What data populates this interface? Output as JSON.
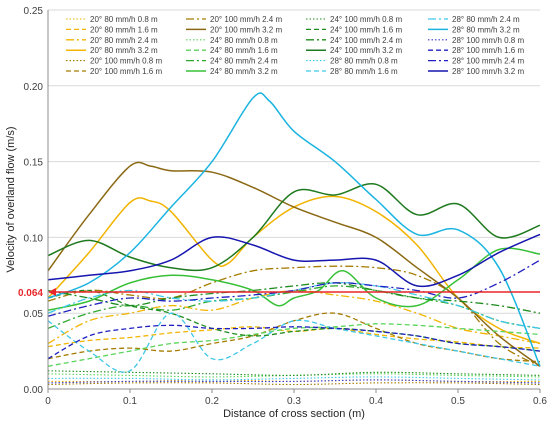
{
  "chart_data": {
    "type": "line",
    "xlabel": "Distance of cross section (m)",
    "ylabel": "Velocity of overland flow (m/s)",
    "xlim": [
      0,
      0.6
    ],
    "ylim": [
      0,
      0.25
    ],
    "x_ticks": [
      "0",
      "0.1",
      "0.2",
      "0.3",
      "0.4",
      "0.5",
      "0.6"
    ],
    "y_ticks": [
      "0.00",
      "0.05",
      "0.10",
      "0.15",
      "0.20",
      "0.25"
    ],
    "grid": "horizontal",
    "legend_position": "top",
    "threshold": {
      "value": 0.064,
      "label": "0.064",
      "color": "#e8272a"
    },
    "series": [
      {
        "name": "20° 80 mm/h 0.8 m",
        "color": "#f2b400",
        "dash": "dot",
        "x": [
          0,
          0.1,
          0.2,
          0.3,
          0.4,
          0.5,
          0.6
        ],
        "y": [
          0.005,
          0.005,
          0.006,
          0.005,
          0.006,
          0.005,
          0.005
        ]
      },
      {
        "name": "20° 80 mm/h 1.6 m",
        "color": "#f2b400",
        "dash": "dash",
        "x": [
          0,
          0.05,
          0.1,
          0.15,
          0.2,
          0.25,
          0.3,
          0.35,
          0.4,
          0.45,
          0.5,
          0.55,
          0.6
        ],
        "y": [
          0.028,
          0.032,
          0.034,
          0.037,
          0.039,
          0.041,
          0.038,
          0.04,
          0.036,
          0.033,
          0.031,
          0.028,
          0.027
        ]
      },
      {
        "name": "20° 80 mm/h 2.4 m",
        "color": "#f2b400",
        "dash": "dashdot",
        "x": [
          0,
          0.05,
          0.1,
          0.15,
          0.2,
          0.25,
          0.3,
          0.35,
          0.4,
          0.45,
          0.5,
          0.55,
          0.6
        ],
        "y": [
          0.03,
          0.045,
          0.05,
          0.055,
          0.052,
          0.06,
          0.065,
          0.062,
          0.058,
          0.05,
          0.04,
          0.035,
          0.03
        ]
      },
      {
        "name": "20° 80 mm/h 3.2 m",
        "color": "#f2b400",
        "dash": "solid",
        "x": [
          0,
          0.05,
          0.1,
          0.125,
          0.15,
          0.2,
          0.22,
          0.25,
          0.3,
          0.35,
          0.4,
          0.45,
          0.5,
          0.55,
          0.6
        ],
        "y": [
          0.06,
          0.09,
          0.123,
          0.124,
          0.117,
          0.085,
          0.083,
          0.1,
          0.12,
          0.127,
          0.117,
          0.095,
          0.06,
          0.04,
          0.03
        ]
      },
      {
        "name": "20° 100 mm/h 0.8 m",
        "color": "#a57c00",
        "dash": "dot",
        "x": [
          0,
          0.1,
          0.2,
          0.3,
          0.4,
          0.5,
          0.6
        ],
        "y": [
          0.003,
          0.004,
          0.004,
          0.003,
          0.004,
          0.004,
          0.003
        ]
      },
      {
        "name": "20° 100 mm/h 1.6 m",
        "color": "#a57c00",
        "dash": "dash",
        "x": [
          0,
          0.05,
          0.1,
          0.15,
          0.2,
          0.25,
          0.3,
          0.35,
          0.4,
          0.45,
          0.5,
          0.55,
          0.6
        ],
        "y": [
          0.02,
          0.025,
          0.027,
          0.025,
          0.03,
          0.035,
          0.045,
          0.05,
          0.04,
          0.03,
          0.025,
          0.02,
          0.018
        ]
      },
      {
        "name": "20° 100 mm/h 2.4 m",
        "color": "#a57c00",
        "dash": "dashdot",
        "x": [
          0,
          0.05,
          0.1,
          0.15,
          0.2,
          0.25,
          0.3,
          0.35,
          0.4,
          0.45,
          0.5,
          0.55,
          0.6
        ],
        "y": [
          0.058,
          0.065,
          0.062,
          0.06,
          0.07,
          0.078,
          0.08,
          0.081,
          0.08,
          0.075,
          0.06,
          0.03,
          0.015
        ]
      },
      {
        "name": "20° 100 mm/h 3.2 m",
        "color": "#8b6914",
        "dash": "solid",
        "x": [
          0,
          0.05,
          0.1,
          0.125,
          0.15,
          0.2,
          0.25,
          0.3,
          0.35,
          0.4,
          0.45,
          0.5,
          0.55,
          0.6
        ],
        "y": [
          0.078,
          0.115,
          0.147,
          0.147,
          0.144,
          0.143,
          0.133,
          0.12,
          0.11,
          0.1,
          0.08,
          0.06,
          0.035,
          0.015
        ]
      },
      {
        "name": "24° 80 mm/h 0.8 m",
        "color": "#5bd45b",
        "dash": "dot",
        "x": [
          0,
          0.1,
          0.2,
          0.3,
          0.4,
          0.5,
          0.6
        ],
        "y": [
          0.01,
          0.009,
          0.008,
          0.009,
          0.01,
          0.009,
          0.008
        ]
      },
      {
        "name": "24° 80 mm/h 1.6 m",
        "color": "#5bd45b",
        "dash": "dash",
        "x": [
          0,
          0.05,
          0.1,
          0.15,
          0.2,
          0.25,
          0.3,
          0.35,
          0.4,
          0.45,
          0.5,
          0.55,
          0.6
        ],
        "y": [
          0.015,
          0.02,
          0.025,
          0.03,
          0.032,
          0.036,
          0.04,
          0.041,
          0.043,
          0.042,
          0.04,
          0.038,
          0.036
        ]
      },
      {
        "name": "24° 80 mm/h 2.4 m",
        "color": "#2fa82f",
        "dash": "dashdot",
        "x": [
          0,
          0.05,
          0.1,
          0.15,
          0.2,
          0.25,
          0.3,
          0.35,
          0.4,
          0.45,
          0.5,
          0.55,
          0.6
        ],
        "y": [
          0.04,
          0.05,
          0.055,
          0.052,
          0.058,
          0.06,
          0.064,
          0.068,
          0.065,
          0.06,
          0.055,
          0.045,
          0.04
        ]
      },
      {
        "name": "24° 80 mm/h 3.2 m",
        "color": "#38c038",
        "dash": "solid",
        "x": [
          0,
          0.05,
          0.1,
          0.15,
          0.2,
          0.25,
          0.28,
          0.3,
          0.33,
          0.36,
          0.4,
          0.45,
          0.5,
          0.55,
          0.6
        ],
        "y": [
          0.052,
          0.058,
          0.07,
          0.075,
          0.072,
          0.065,
          0.055,
          0.06,
          0.065,
          0.078,
          0.06,
          0.055,
          0.072,
          0.092,
          0.089
        ]
      },
      {
        "name": "24° 100 mm/h 0.8 m",
        "color": "#1e8c1e",
        "dash": "dot",
        "x": [
          0,
          0.1,
          0.2,
          0.3,
          0.4,
          0.5,
          0.6
        ],
        "y": [
          0.012,
          0.011,
          0.01,
          0.009,
          0.011,
          0.01,
          0.009
        ]
      },
      {
        "name": "24° 100 mm/h 1.6 m",
        "color": "#1e8c1e",
        "dash": "dash",
        "x": [
          0,
          0.05,
          0.1,
          0.15,
          0.2,
          0.25,
          0.3,
          0.35,
          0.4,
          0.45,
          0.5,
          0.55,
          0.6
        ],
        "y": [
          0.06,
          0.065,
          0.055,
          0.05,
          0.04,
          0.035,
          0.038,
          0.04,
          0.038,
          0.035,
          0.03,
          0.028,
          0.025
        ]
      },
      {
        "name": "24° 100 mm/h 2.4 m",
        "color": "#1e8c1e",
        "dash": "dashdot",
        "x": [
          0,
          0.05,
          0.1,
          0.15,
          0.2,
          0.25,
          0.3,
          0.35,
          0.4,
          0.45,
          0.5,
          0.55,
          0.6
        ],
        "y": [
          0.065,
          0.06,
          0.055,
          0.06,
          0.063,
          0.065,
          0.068,
          0.07,
          0.065,
          0.06,
          0.058,
          0.055,
          0.05
        ]
      },
      {
        "name": "24° 100 mm/h 3.2 m",
        "color": "#1f7a1f",
        "dash": "solid",
        "x": [
          0,
          0.05,
          0.1,
          0.15,
          0.2,
          0.25,
          0.3,
          0.35,
          0.4,
          0.45,
          0.5,
          0.55,
          0.6
        ],
        "y": [
          0.088,
          0.098,
          0.087,
          0.08,
          0.08,
          0.1,
          0.13,
          0.128,
          0.135,
          0.115,
          0.122,
          0.1,
          0.108
        ]
      },
      {
        "name": "28° 80 mm/h 0.8 m",
        "color": "#3fc8e8",
        "dash": "dot",
        "x": [
          0,
          0.1,
          0.2,
          0.3,
          0.4,
          0.5,
          0.6
        ],
        "y": [
          0.007,
          0.007,
          0.006,
          0.007,
          0.008,
          0.007,
          0.006
        ]
      },
      {
        "name": "28° 80 mm/h 1.6 m",
        "color": "#3fc8e8",
        "dash": "dash",
        "x": [
          0,
          0.05,
          0.1,
          0.15,
          0.2,
          0.25,
          0.3,
          0.35,
          0.4,
          0.45,
          0.5,
          0.55,
          0.6
        ],
        "y": [
          0.045,
          0.025,
          0.012,
          0.05,
          0.02,
          0.03,
          0.045,
          0.04,
          0.035,
          0.03,
          0.025,
          0.02,
          0.015
        ]
      },
      {
        "name": "28° 80 mm/h 2.4 m",
        "color": "#3fc8e8",
        "dash": "dashdot",
        "x": [
          0,
          0.05,
          0.1,
          0.15,
          0.2,
          0.25,
          0.3,
          0.35,
          0.4,
          0.45,
          0.5,
          0.55,
          0.6
        ],
        "y": [
          0.05,
          0.06,
          0.065,
          0.06,
          0.058,
          0.06,
          0.065,
          0.07,
          0.068,
          0.062,
          0.055,
          0.045,
          0.04
        ]
      },
      {
        "name": "28° 80 mm/h 3.2 m",
        "color": "#1ab4e0",
        "dash": "solid",
        "x": [
          0,
          0.05,
          0.1,
          0.15,
          0.2,
          0.25,
          0.27,
          0.3,
          0.35,
          0.4,
          0.45,
          0.5,
          0.55,
          0.6
        ],
        "y": [
          0.06,
          0.07,
          0.09,
          0.12,
          0.15,
          0.192,
          0.19,
          0.17,
          0.15,
          0.125,
          0.102,
          0.105,
          0.08,
          0.015
        ]
      },
      {
        "name": "28° 100 mm/h 0.8 m",
        "color": "#3a3ad0",
        "dash": "dot",
        "x": [
          0,
          0.1,
          0.2,
          0.3,
          0.4,
          0.5,
          0.6
        ],
        "y": [
          0.004,
          0.005,
          0.005,
          0.005,
          0.006,
          0.005,
          0.004
        ]
      },
      {
        "name": "28° 100 mm/h 1.6 m",
        "color": "#2020c0",
        "dash": "dash",
        "x": [
          0,
          0.05,
          0.1,
          0.15,
          0.2,
          0.25,
          0.3,
          0.35,
          0.4,
          0.45,
          0.5,
          0.55,
          0.6
        ],
        "y": [
          0.02,
          0.035,
          0.04,
          0.042,
          0.04,
          0.04,
          0.041,
          0.04,
          0.038,
          0.035,
          0.03,
          0.028,
          0.025
        ]
      },
      {
        "name": "28° 100 mm/h 2.4 m",
        "color": "#2020c0",
        "dash": "dashdot",
        "x": [
          0,
          0.05,
          0.1,
          0.15,
          0.2,
          0.25,
          0.3,
          0.35,
          0.4,
          0.45,
          0.5,
          0.55,
          0.6
        ],
        "y": [
          0.048,
          0.055,
          0.06,
          0.058,
          0.06,
          0.062,
          0.065,
          0.07,
          0.068,
          0.065,
          0.06,
          0.07,
          0.085
        ]
      },
      {
        "name": "28° 100 mm/h 3.2 m",
        "color": "#1515b0",
        "dash": "solid",
        "x": [
          0,
          0.05,
          0.1,
          0.15,
          0.2,
          0.25,
          0.3,
          0.35,
          0.4,
          0.45,
          0.5,
          0.55,
          0.6
        ],
        "y": [
          0.072,
          0.075,
          0.078,
          0.085,
          0.1,
          0.095,
          0.085,
          0.085,
          0.085,
          0.068,
          0.075,
          0.09,
          0.102
        ]
      }
    ]
  }
}
